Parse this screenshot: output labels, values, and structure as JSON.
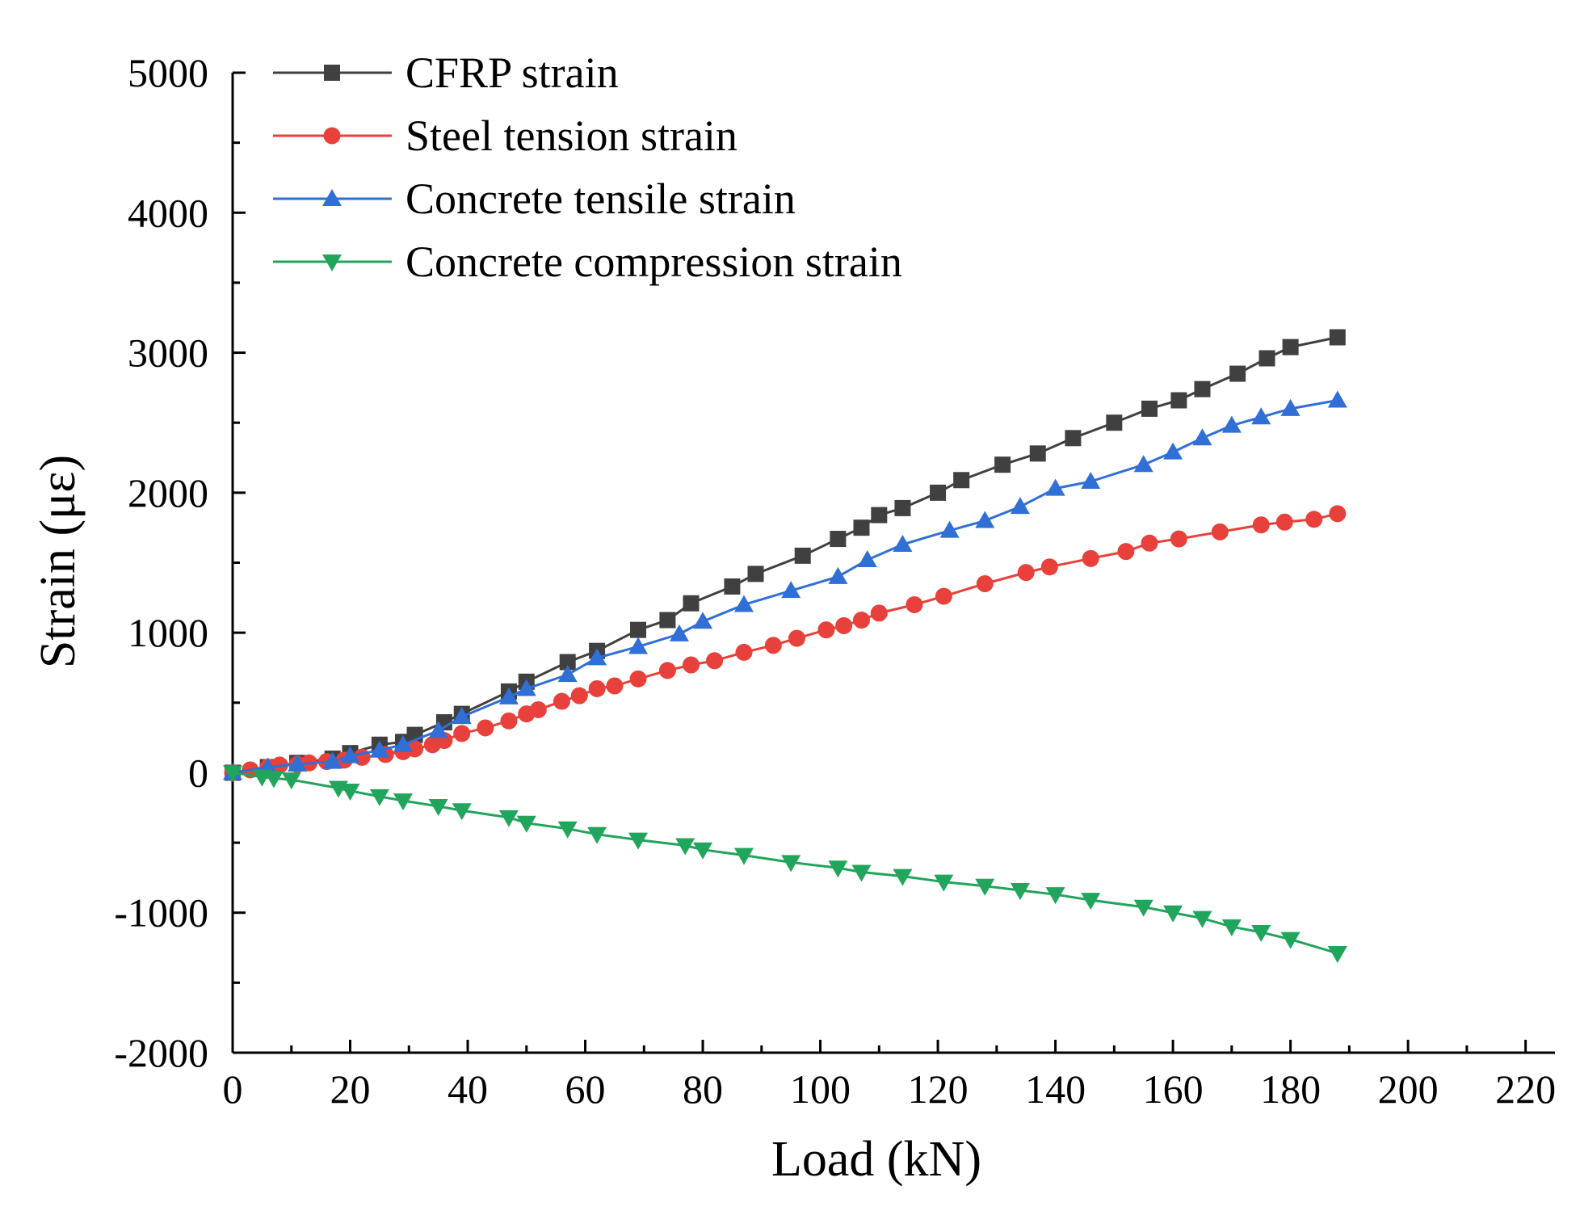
{
  "chart_data": {
    "type": "line",
    "title": "",
    "xlabel": "Load (kN)",
    "ylabel": "Strain (με)",
    "xlim": [
      0,
      225
    ],
    "ylim": [
      -2000,
      5000
    ],
    "xticks": [
      0,
      20,
      40,
      60,
      80,
      100,
      120,
      140,
      160,
      180,
      200,
      220
    ],
    "yticks": [
      -2000,
      -1000,
      0,
      1000,
      2000,
      3000,
      4000,
      5000
    ],
    "grid": false,
    "legend_position": "top-left",
    "series": [
      {
        "name": "CFRP strain",
        "color": "#404040",
        "marker": "square",
        "x": [
          0,
          6,
          11,
          17,
          20,
          25,
          29,
          31,
          36,
          39,
          47,
          50,
          57,
          62,
          69,
          74,
          78,
          85,
          89,
          97,
          103,
          107,
          110,
          114,
          120,
          124,
          131,
          137,
          143,
          150,
          156,
          161,
          165,
          171,
          176,
          180,
          188
        ],
        "y": [
          0,
          40,
          70,
          100,
          140,
          200,
          220,
          270,
          360,
          420,
          580,
          650,
          790,
          870,
          1020,
          1090,
          1210,
          1330,
          1420,
          1550,
          1670,
          1750,
          1840,
          1890,
          2000,
          2090,
          2200,
          2280,
          2390,
          2500,
          2600,
          2660,
          2740,
          2850,
          2960,
          3040,
          3110
        ]
      },
      {
        "name": "Steel tension strain",
        "color": "#e8403a",
        "marker": "circle",
        "x": [
          0,
          3,
          6,
          8,
          11,
          13,
          16,
          19,
          22,
          26,
          29,
          31,
          34,
          36,
          39,
          43,
          47,
          50,
          52,
          56,
          59,
          62,
          65,
          69,
          74,
          78,
          82,
          87,
          92,
          96,
          101,
          104,
          107,
          110,
          116,
          121,
          128,
          135,
          139,
          146,
          152,
          156,
          161,
          168,
          175,
          179,
          184,
          188
        ],
        "y": [
          0,
          20,
          40,
          55,
          60,
          70,
          80,
          90,
          110,
          130,
          150,
          170,
          200,
          230,
          280,
          320,
          370,
          420,
          450,
          510,
          550,
          600,
          620,
          670,
          730,
          770,
          800,
          860,
          910,
          960,
          1020,
          1050,
          1090,
          1140,
          1200,
          1260,
          1350,
          1430,
          1470,
          1530,
          1580,
          1640,
          1670,
          1720,
          1770,
          1790,
          1810,
          1850
        ]
      },
      {
        "name": "Concrete tensile strain",
        "color": "#2f6fd6",
        "marker": "triangle-up",
        "x": [
          0,
          6,
          11,
          17,
          20,
          25,
          29,
          35,
          39,
          47,
          50,
          57,
          62,
          69,
          76,
          80,
          87,
          95,
          103,
          108,
          114,
          122,
          128,
          134,
          140,
          146,
          155,
          160,
          165,
          170,
          175,
          180,
          188
        ],
        "y": [
          0,
          40,
          60,
          80,
          120,
          160,
          200,
          300,
          400,
          540,
          600,
          700,
          820,
          900,
          990,
          1080,
          1200,
          1300,
          1400,
          1520,
          1630,
          1730,
          1800,
          1900,
          2030,
          2080,
          2200,
          2290,
          2390,
          2480,
          2540,
          2600,
          2660
        ]
      },
      {
        "name": "Concrete compression strain",
        "color": "#21a55c",
        "marker": "triangle-down",
        "x": [
          0,
          5,
          7,
          10,
          18,
          20,
          25,
          29,
          35,
          39,
          47,
          50,
          57,
          62,
          69,
          77,
          80,
          87,
          95,
          103,
          107,
          114,
          121,
          128,
          134,
          140,
          146,
          155,
          160,
          165,
          170,
          175,
          180,
          188
        ],
        "y": [
          0,
          -30,
          -40,
          -50,
          -110,
          -130,
          -170,
          -200,
          -240,
          -270,
          -320,
          -360,
          -400,
          -440,
          -480,
          -520,
          -550,
          -590,
          -640,
          -680,
          -710,
          -740,
          -780,
          -810,
          -840,
          -870,
          -910,
          -960,
          -1000,
          -1040,
          -1100,
          -1140,
          -1190,
          -1290
        ]
      }
    ]
  }
}
